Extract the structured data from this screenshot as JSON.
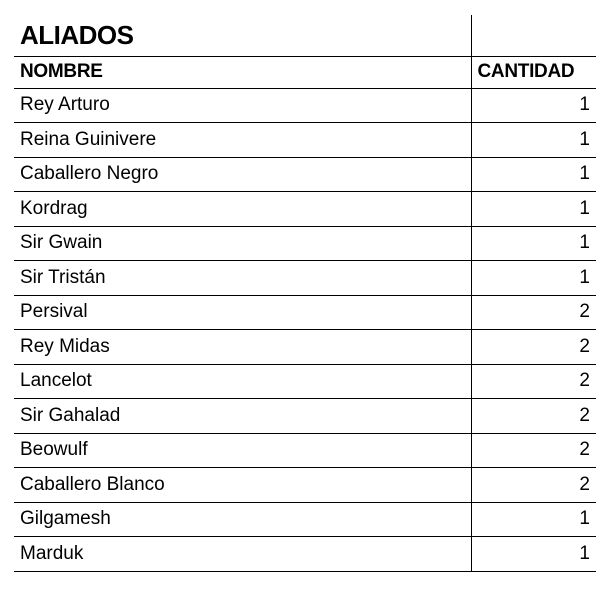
{
  "table": {
    "title": "ALIADOS",
    "columns": [
      "NOMBRE",
      "CANTIDAD"
    ],
    "rows": [
      [
        "Rey Arturo",
        "1"
      ],
      [
        "Reina Guinivere",
        "1"
      ],
      [
        "Caballero Negro",
        "1"
      ],
      [
        "Kordrag",
        "1"
      ],
      [
        "Sir Gwain",
        "1"
      ],
      [
        "Sir Tristán",
        "1"
      ],
      [
        "Persival",
        "2"
      ],
      [
        "Rey Midas",
        "2"
      ],
      [
        "Lancelot",
        "2"
      ],
      [
        "Sir Gahalad",
        "2"
      ],
      [
        "Beowulf",
        "2"
      ],
      [
        "Caballero Blanco",
        "2"
      ],
      [
        "Gilgamesh",
        "1"
      ],
      [
        "Marduk",
        "1"
      ]
    ],
    "col_widths": [
      "auto",
      "125px"
    ],
    "background_color": "#ffffff",
    "border_color": "#000000",
    "title_fontsize": 26,
    "header_fontsize": 19,
    "data_fontsize": 19
  }
}
